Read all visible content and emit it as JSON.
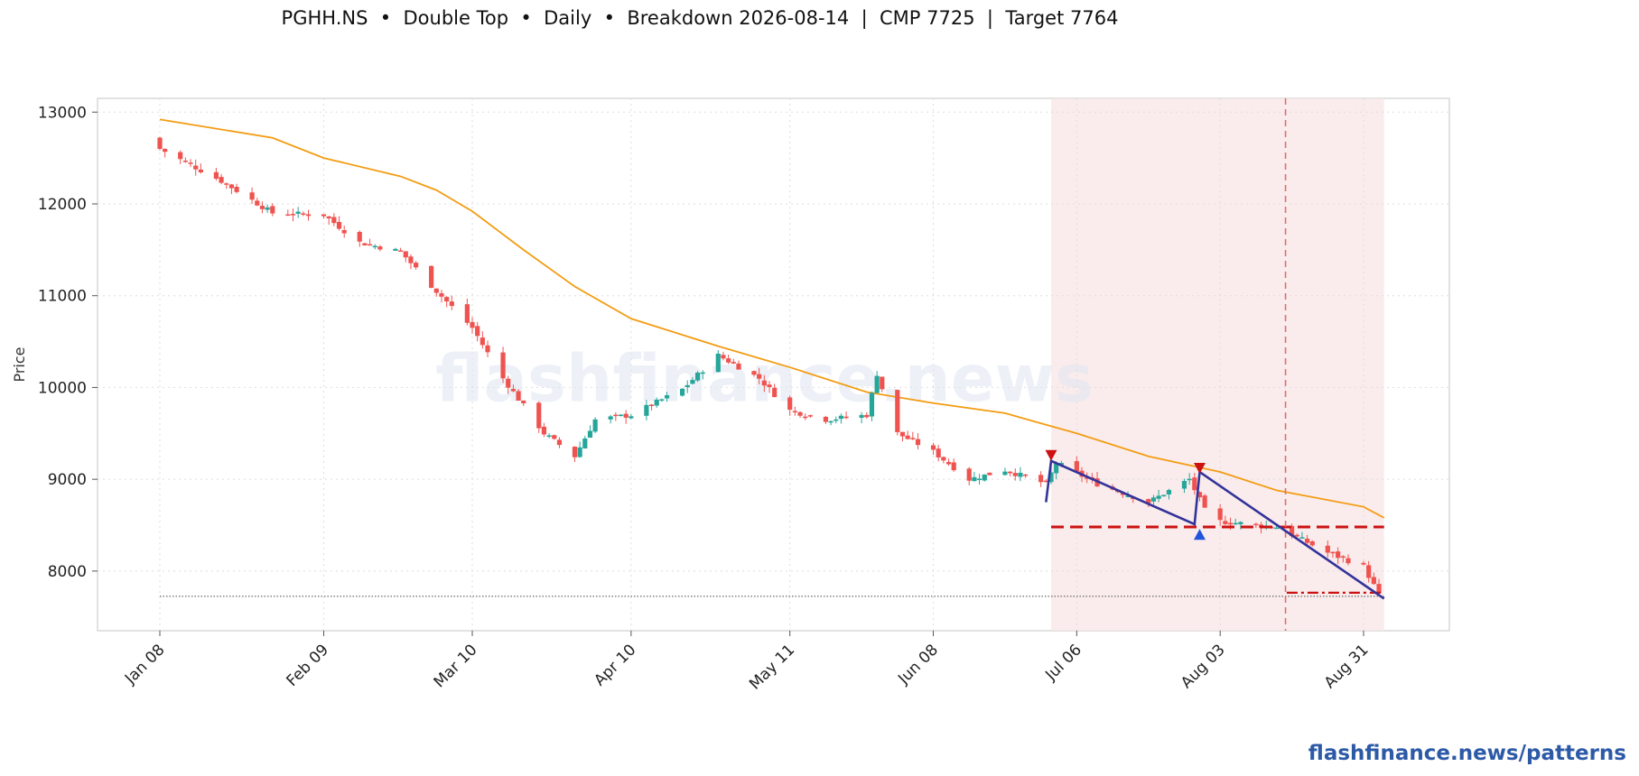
{
  "chart_data": {
    "type": "candlestick",
    "title": "PGHH.NS  •  Double Top  •  Daily  •  Breakdown 2026-08-14  |  CMP 7725  |  Target 7764",
    "ylabel": "Price",
    "xlabel": "",
    "ylim": [
      7350,
      13150
    ],
    "yticks": [
      8000,
      9000,
      10000,
      11000,
      12000,
      13000
    ],
    "xticks": [
      {
        "label": "Jan 08",
        "date": "2026-01-08"
      },
      {
        "label": "Feb 09",
        "date": "2026-02-09"
      },
      {
        "label": "Mar 10",
        "date": "2026-03-10"
      },
      {
        "label": "Apr 10",
        "date": "2026-04-10"
      },
      {
        "label": "May 11",
        "date": "2026-05-11"
      },
      {
        "label": "Jun 08",
        "date": "2026-06-08"
      },
      {
        "label": "Jul 06",
        "date": "2026-07-06"
      },
      {
        "label": "Aug 03",
        "date": "2026-08-03"
      },
      {
        "label": "Aug 31",
        "date": "2026-08-31"
      }
    ],
    "grid": true,
    "candle_anchors": [
      {
        "date": "2026-01-08",
        "close": 12600
      },
      {
        "date": "2026-01-20",
        "close": 12250
      },
      {
        "date": "2026-01-30",
        "close": 11900
      },
      {
        "date": "2026-02-09",
        "close": 11880
      },
      {
        "date": "2026-02-16",
        "close": 11580
      },
      {
        "date": "2026-02-24",
        "close": 11480
      },
      {
        "date": "2026-03-03",
        "close": 11050
      },
      {
        "date": "2026-03-10",
        "close": 10650
      },
      {
        "date": "2026-03-16",
        "close": 10100
      },
      {
        "date": "2026-03-24",
        "close": 9500
      },
      {
        "date": "2026-03-30",
        "close": 9250
      },
      {
        "date": "2026-04-03",
        "close": 9650
      },
      {
        "date": "2026-04-10",
        "close": 9700
      },
      {
        "date": "2026-04-20",
        "close": 9980
      },
      {
        "date": "2026-04-27",
        "close": 10350
      },
      {
        "date": "2026-05-05",
        "close": 10100
      },
      {
        "date": "2026-05-11",
        "close": 9750
      },
      {
        "date": "2026-05-18",
        "close": 9650
      },
      {
        "date": "2026-05-26",
        "close": 9700
      },
      {
        "date": "2026-05-28",
        "close": 10150
      },
      {
        "date": "2026-06-01",
        "close": 9500
      },
      {
        "date": "2026-06-08",
        "close": 9300
      },
      {
        "date": "2026-06-15",
        "close": 9000
      },
      {
        "date": "2026-06-22",
        "close": 9100
      },
      {
        "date": "2026-06-30",
        "close": 8950
      },
      {
        "date": "2026-07-02",
        "close": 9180
      },
      {
        "date": "2026-07-10",
        "close": 8950
      },
      {
        "date": "2026-07-20",
        "close": 8750
      },
      {
        "date": "2026-07-28",
        "close": 9000
      },
      {
        "date": "2026-08-01",
        "close": 8550
      },
      {
        "date": "2026-08-07",
        "close": 8520
      },
      {
        "date": "2026-08-14",
        "close": 8480
      },
      {
        "date": "2026-08-24",
        "close": 8200
      },
      {
        "date": "2026-08-31",
        "close": 8050
      },
      {
        "date": "2026-09-03",
        "close": 7740
      }
    ],
    "moving_average": [
      {
        "date": "2026-01-08",
        "value": 12920
      },
      {
        "date": "2026-01-30",
        "value": 12720
      },
      {
        "date": "2026-02-09",
        "value": 12500
      },
      {
        "date": "2026-02-24",
        "value": 12300
      },
      {
        "date": "2026-03-03",
        "value": 12150
      },
      {
        "date": "2026-03-10",
        "value": 11920
      },
      {
        "date": "2026-03-20",
        "value": 11500
      },
      {
        "date": "2026-03-30",
        "value": 11100
      },
      {
        "date": "2026-04-10",
        "value": 10750
      },
      {
        "date": "2026-04-27",
        "value": 10450
      },
      {
        "date": "2026-05-11",
        "value": 10220
      },
      {
        "date": "2026-05-26",
        "value": 9950
      },
      {
        "date": "2026-06-08",
        "value": 9830
      },
      {
        "date": "2026-06-22",
        "value": 9720
      },
      {
        "date": "2026-07-06",
        "value": 9500
      },
      {
        "date": "2026-07-20",
        "value": 9250
      },
      {
        "date": "2026-08-03",
        "value": 9080
      },
      {
        "date": "2026-08-14",
        "value": 8880
      },
      {
        "date": "2026-08-31",
        "value": 8700
      },
      {
        "date": "2026-09-04",
        "value": 8580
      }
    ],
    "pattern": {
      "name": "Double Top",
      "shaded_ranges": [
        {
          "start": "2026-07-01",
          "end": "2026-08-16"
        },
        {
          "start": "2026-08-16",
          "end": "2026-09-04"
        }
      ],
      "breakdown_date": "2026-08-14",
      "zigzag": [
        {
          "date": "2026-06-30",
          "value": 8750
        },
        {
          "date": "2026-07-01",
          "value": 9200
        },
        {
          "date": "2026-07-29",
          "value": 8510
        },
        {
          "date": "2026-07-30",
          "value": 9080
        },
        {
          "date": "2026-09-04",
          "value": 7700
        }
      ],
      "top_markers": [
        {
          "date": "2026-07-01",
          "value": 9260
        },
        {
          "date": "2026-07-30",
          "value": 9120
        }
      ],
      "trough_marker": {
        "date": "2026-07-30",
        "value": 8400
      },
      "neckline": 8480,
      "neckline_start": "2026-07-01",
      "neckline_end": "2026-09-04",
      "target": 7764,
      "target_start": "2026-08-16",
      "target_end": "2026-09-04",
      "cmp": 7725
    },
    "colors": {
      "up": "#26a69a",
      "down": "#ef5350",
      "ma": "#f39c12",
      "pattern_line": "#33339a",
      "neckline": "#cc1111",
      "target": "#cc1111",
      "shade": "#f8e6e6",
      "marker_top": "#cc1111",
      "marker_trough": "#2255dd"
    }
  },
  "watermark": "flashfinance.news",
  "footer": "flashfinance.news/patterns"
}
